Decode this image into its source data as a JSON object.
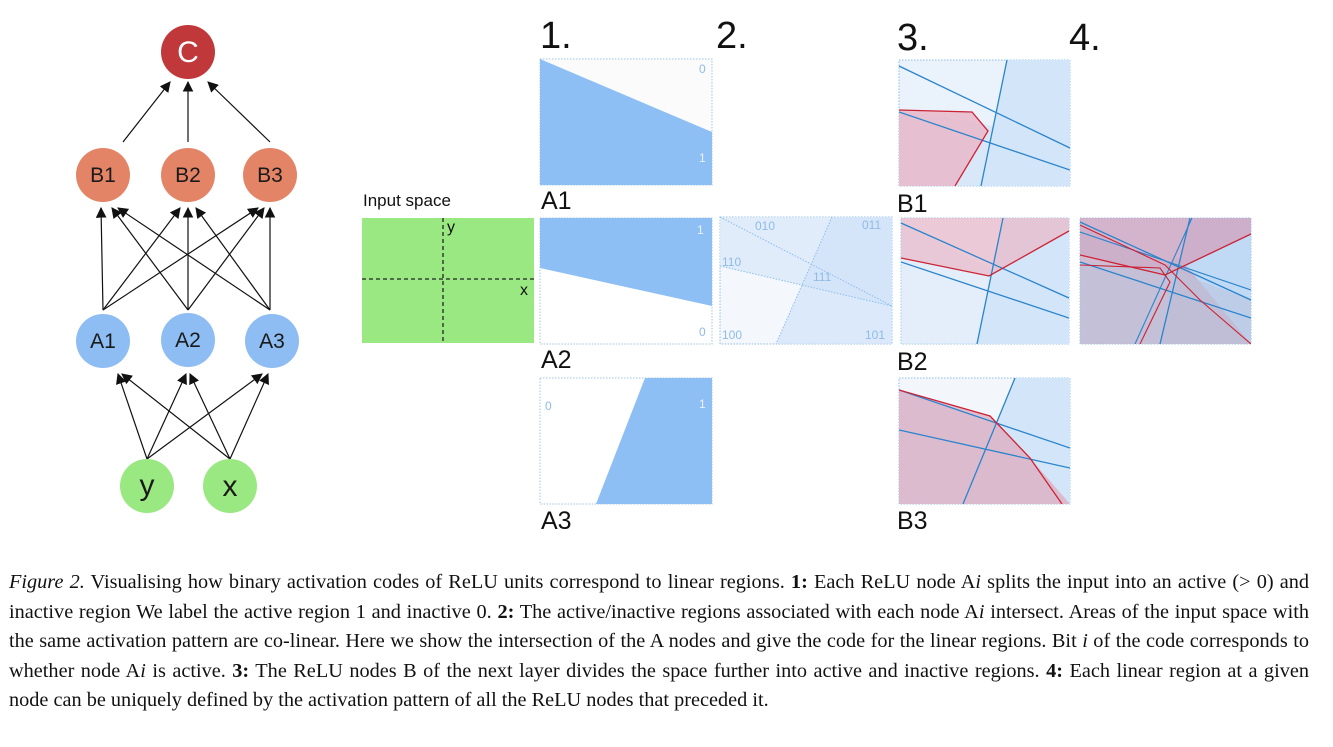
{
  "network": {
    "output": "C",
    "layer_b": [
      "B1",
      "B2",
      "B3"
    ],
    "layer_a": [
      "A1",
      "A2",
      "A3"
    ],
    "inputs": [
      "y",
      "x"
    ],
    "colors": {
      "output": "#c0383a",
      "layer_b": "#e38466",
      "layer_a": "#8dbdf2",
      "inputs": "#9ae882"
    }
  },
  "steps": [
    "1.",
    "2.",
    "3.",
    "4."
  ],
  "input_space": {
    "title": "Input space",
    "x_axis": "x",
    "y_axis": "y",
    "color": "#9ae882"
  },
  "panels": {
    "A1": {
      "label": "A1",
      "inactive": "0",
      "active": "1"
    },
    "A2": {
      "label": "A2",
      "inactive": "0",
      "active": "1"
    },
    "A3": {
      "label": "A3",
      "inactive": "0",
      "active": "1"
    },
    "B1": {
      "label": "B1"
    },
    "B2": {
      "label": "B2"
    },
    "B3": {
      "label": "B3"
    }
  },
  "codes": [
    "010",
    "011",
    "110",
    "111",
    "100",
    "101"
  ],
  "colors": {
    "active_blue": "#8ebff4",
    "region_red": "#dd9aab",
    "boundary_blue": "#2a84cc",
    "boundary_red": "#cc2233"
  },
  "caption": {
    "fig_label": "Figure 2.",
    "intro": " Visualising how binary activation codes of ReLU units correspond to linear regions. ",
    "s1_label": "1:",
    "s1_a": " Each ReLU node A",
    "s1_var": "i",
    "s1_b": " splits the input into an active (",
    "s1_math": "> 0",
    "s1_c": ") and inactive region We label the active region 1 and inactive 0. ",
    "s2_label": "2:",
    "s2_a": " The active/inactive regions associated with each node A",
    "s2_var": "i",
    "s2_b": " intersect. Areas of the input space with the same activation pattern are co-linear. Here we show the intersection of the A nodes and give the code for the linear regions. Bit ",
    "s2_var2": "i",
    "s2_c": " of the code corresponds to whether node A",
    "s2_var3": "i",
    "s2_d": " is active. ",
    "s3_label": "3:",
    "s3_a": " The ReLU nodes B of the next layer divides the space further into active and inactive regions. ",
    "s4_label": "4:",
    "s4_a": " Each linear region at a given node can be uniquely defined by the activation pattern of all the ReLU nodes that preceded it."
  }
}
